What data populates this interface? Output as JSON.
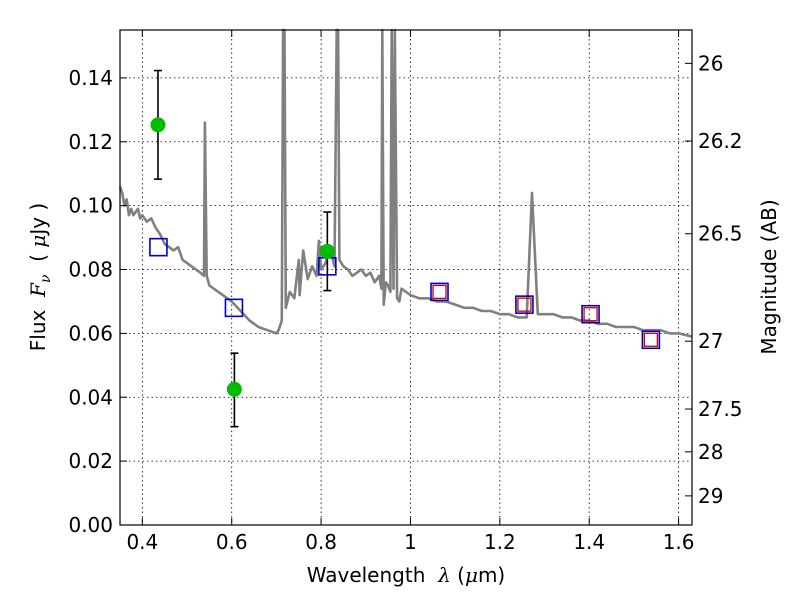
{
  "chart_data": {
    "type": "scatter",
    "x": {
      "label_prefix": "Wavelength  ",
      "label_symbol": "λ",
      "label_suffix": " (",
      "label_mu": "μ",
      "label_unit": "m)",
      "range": [
        0.35,
        1.63
      ],
      "ticks": [
        0.4,
        0.6,
        0.8,
        1.0,
        1.2,
        1.4,
        1.6
      ],
      "tick_labels": [
        "0.4",
        "0.6",
        "0.8",
        "1",
        "1.2",
        "1.4",
        "1.6"
      ]
    },
    "y": {
      "label_prefix": "Flux  ",
      "label_symbol": "F",
      "label_sub": "ν",
      "label_mid": "  ( ",
      "label_mu": "μ",
      "label_unit": "Jy )",
      "range": [
        0.0,
        0.155
      ],
      "ticks": [
        0.0,
        0.02,
        0.04,
        0.06,
        0.08,
        0.1,
        0.12,
        0.14
      ],
      "tick_labels": [
        "0.00",
        "0.02",
        "0.04",
        "0.06",
        "0.08",
        "0.10",
        "0.12",
        "0.14"
      ]
    },
    "y2": {
      "label": "Magnitude (AB)",
      "tick_labels": [
        "26",
        "26.2",
        "26.5",
        "27",
        "27.5",
        "28",
        "29"
      ]
    },
    "grid": true,
    "series": [
      {
        "kind": "model-spectrum",
        "color": "#808080",
        "points": [
          [
            0.35,
            0.106
          ],
          [
            0.355,
            0.104
          ],
          [
            0.36,
            0.1
          ],
          [
            0.365,
            0.102
          ],
          [
            0.37,
            0.097
          ],
          [
            0.375,
            0.099
          ],
          [
            0.38,
            0.097
          ],
          [
            0.39,
            0.099
          ],
          [
            0.395,
            0.096
          ],
          [
            0.4,
            0.097
          ],
          [
            0.41,
            0.095
          ],
          [
            0.42,
            0.096
          ],
          [
            0.43,
            0.093
          ],
          [
            0.44,
            0.091
          ],
          [
            0.45,
            0.088
          ],
          [
            0.46,
            0.087
          ],
          [
            0.47,
            0.086
          ],
          [
            0.48,
            0.087
          ],
          [
            0.49,
            0.083
          ],
          [
            0.5,
            0.082
          ],
          [
            0.51,
            0.081
          ],
          [
            0.52,
            0.08
          ],
          [
            0.53,
            0.079
          ],
          [
            0.538,
            0.078
          ],
          [
            0.54,
            0.126
          ],
          [
            0.544,
            0.078
          ],
          [
            0.55,
            0.075
          ],
          [
            0.56,
            0.074
          ],
          [
            0.58,
            0.072
          ],
          [
            0.6,
            0.07
          ],
          [
            0.62,
            0.067
          ],
          [
            0.64,
            0.064
          ],
          [
            0.66,
            0.062
          ],
          [
            0.68,
            0.061
          ],
          [
            0.7,
            0.06
          ],
          [
            0.705,
            0.061
          ],
          [
            0.712,
            0.064
          ],
          [
            0.715,
            0.155
          ],
          [
            0.718,
            0.155
          ],
          [
            0.721,
            0.068
          ],
          [
            0.73,
            0.073
          ],
          [
            0.74,
            0.071
          ],
          [
            0.75,
            0.083
          ],
          [
            0.752,
            0.072
          ],
          [
            0.76,
            0.086
          ],
          [
            0.77,
            0.077
          ],
          [
            0.78,
            0.081
          ],
          [
            0.79,
            0.078
          ],
          [
            0.795,
            0.089
          ],
          [
            0.8,
            0.08
          ],
          [
            0.81,
            0.082
          ],
          [
            0.82,
            0.087
          ],
          [
            0.83,
            0.081
          ],
          [
            0.835,
            0.155
          ],
          [
            0.838,
            0.155
          ],
          [
            0.841,
            0.083
          ],
          [
            0.85,
            0.081
          ],
          [
            0.86,
            0.08
          ],
          [
            0.87,
            0.078
          ],
          [
            0.88,
            0.079
          ],
          [
            0.89,
            0.08
          ],
          [
            0.9,
            0.078
          ],
          [
            0.91,
            0.079
          ],
          [
            0.92,
            0.076
          ],
          [
            0.93,
            0.078
          ],
          [
            0.935,
            0.074
          ],
          [
            0.937,
            0.155
          ],
          [
            0.94,
            0.069
          ],
          [
            0.945,
            0.076
          ],
          [
            0.95,
            0.075
          ],
          [
            0.955,
            0.073
          ],
          [
            0.958,
            0.155
          ],
          [
            0.962,
            0.074
          ],
          [
            0.965,
            0.155
          ],
          [
            0.97,
            0.071
          ],
          [
            0.975,
            0.07
          ],
          [
            0.98,
            0.074
          ],
          [
            0.99,
            0.073
          ],
          [
            1.0,
            0.072
          ],
          [
            1.02,
            0.071
          ],
          [
            1.04,
            0.071
          ],
          [
            1.06,
            0.07
          ],
          [
            1.08,
            0.07
          ],
          [
            1.1,
            0.069
          ],
          [
            1.12,
            0.068
          ],
          [
            1.14,
            0.068
          ],
          [
            1.16,
            0.067
          ],
          [
            1.18,
            0.067
          ],
          [
            1.2,
            0.066
          ],
          [
            1.22,
            0.066
          ],
          [
            1.24,
            0.065
          ],
          [
            1.26,
            0.065
          ],
          [
            1.272,
            0.104
          ],
          [
            1.285,
            0.066
          ],
          [
            1.3,
            0.066
          ],
          [
            1.32,
            0.066
          ],
          [
            1.34,
            0.065
          ],
          [
            1.36,
            0.065
          ],
          [
            1.38,
            0.064
          ],
          [
            1.4,
            0.064
          ],
          [
            1.42,
            0.063
          ],
          [
            1.44,
            0.063
          ],
          [
            1.46,
            0.062
          ],
          [
            1.48,
            0.062
          ],
          [
            1.5,
            0.062
          ],
          [
            1.52,
            0.061
          ],
          [
            1.54,
            0.061
          ],
          [
            1.56,
            0.061
          ],
          [
            1.58,
            0.06
          ],
          [
            1.6,
            0.06
          ],
          [
            1.63,
            0.059
          ]
        ]
      },
      {
        "kind": "model-bandpass-squares",
        "color": "#0000cc",
        "points": [
          [
            0.436,
            0.087
          ],
          [
            0.605,
            0.068
          ],
          [
            0.814,
            0.081
          ],
          [
            1.065,
            0.073
          ],
          [
            1.255,
            0.069
          ],
          [
            1.403,
            0.066
          ],
          [
            1.538,
            0.058
          ]
        ]
      },
      {
        "kind": "observed-squares",
        "color": "#cc0000",
        "points": [
          [
            1.065,
            0.073
          ],
          [
            1.255,
            0.069
          ],
          [
            1.403,
            0.066
          ],
          [
            1.538,
            0.058
          ]
        ]
      },
      {
        "kind": "observed-detections",
        "color": "#00bb00",
        "points": [
          {
            "x": 0.435,
            "y": 0.1253,
            "lo": 0.1083,
            "hi": 0.1423
          },
          {
            "x": 0.606,
            "y": 0.0425,
            "lo": 0.0308,
            "hi": 0.0538
          },
          {
            "x": 0.814,
            "y": 0.0857,
            "lo": 0.0734,
            "hi": 0.098
          }
        ]
      }
    ]
  }
}
